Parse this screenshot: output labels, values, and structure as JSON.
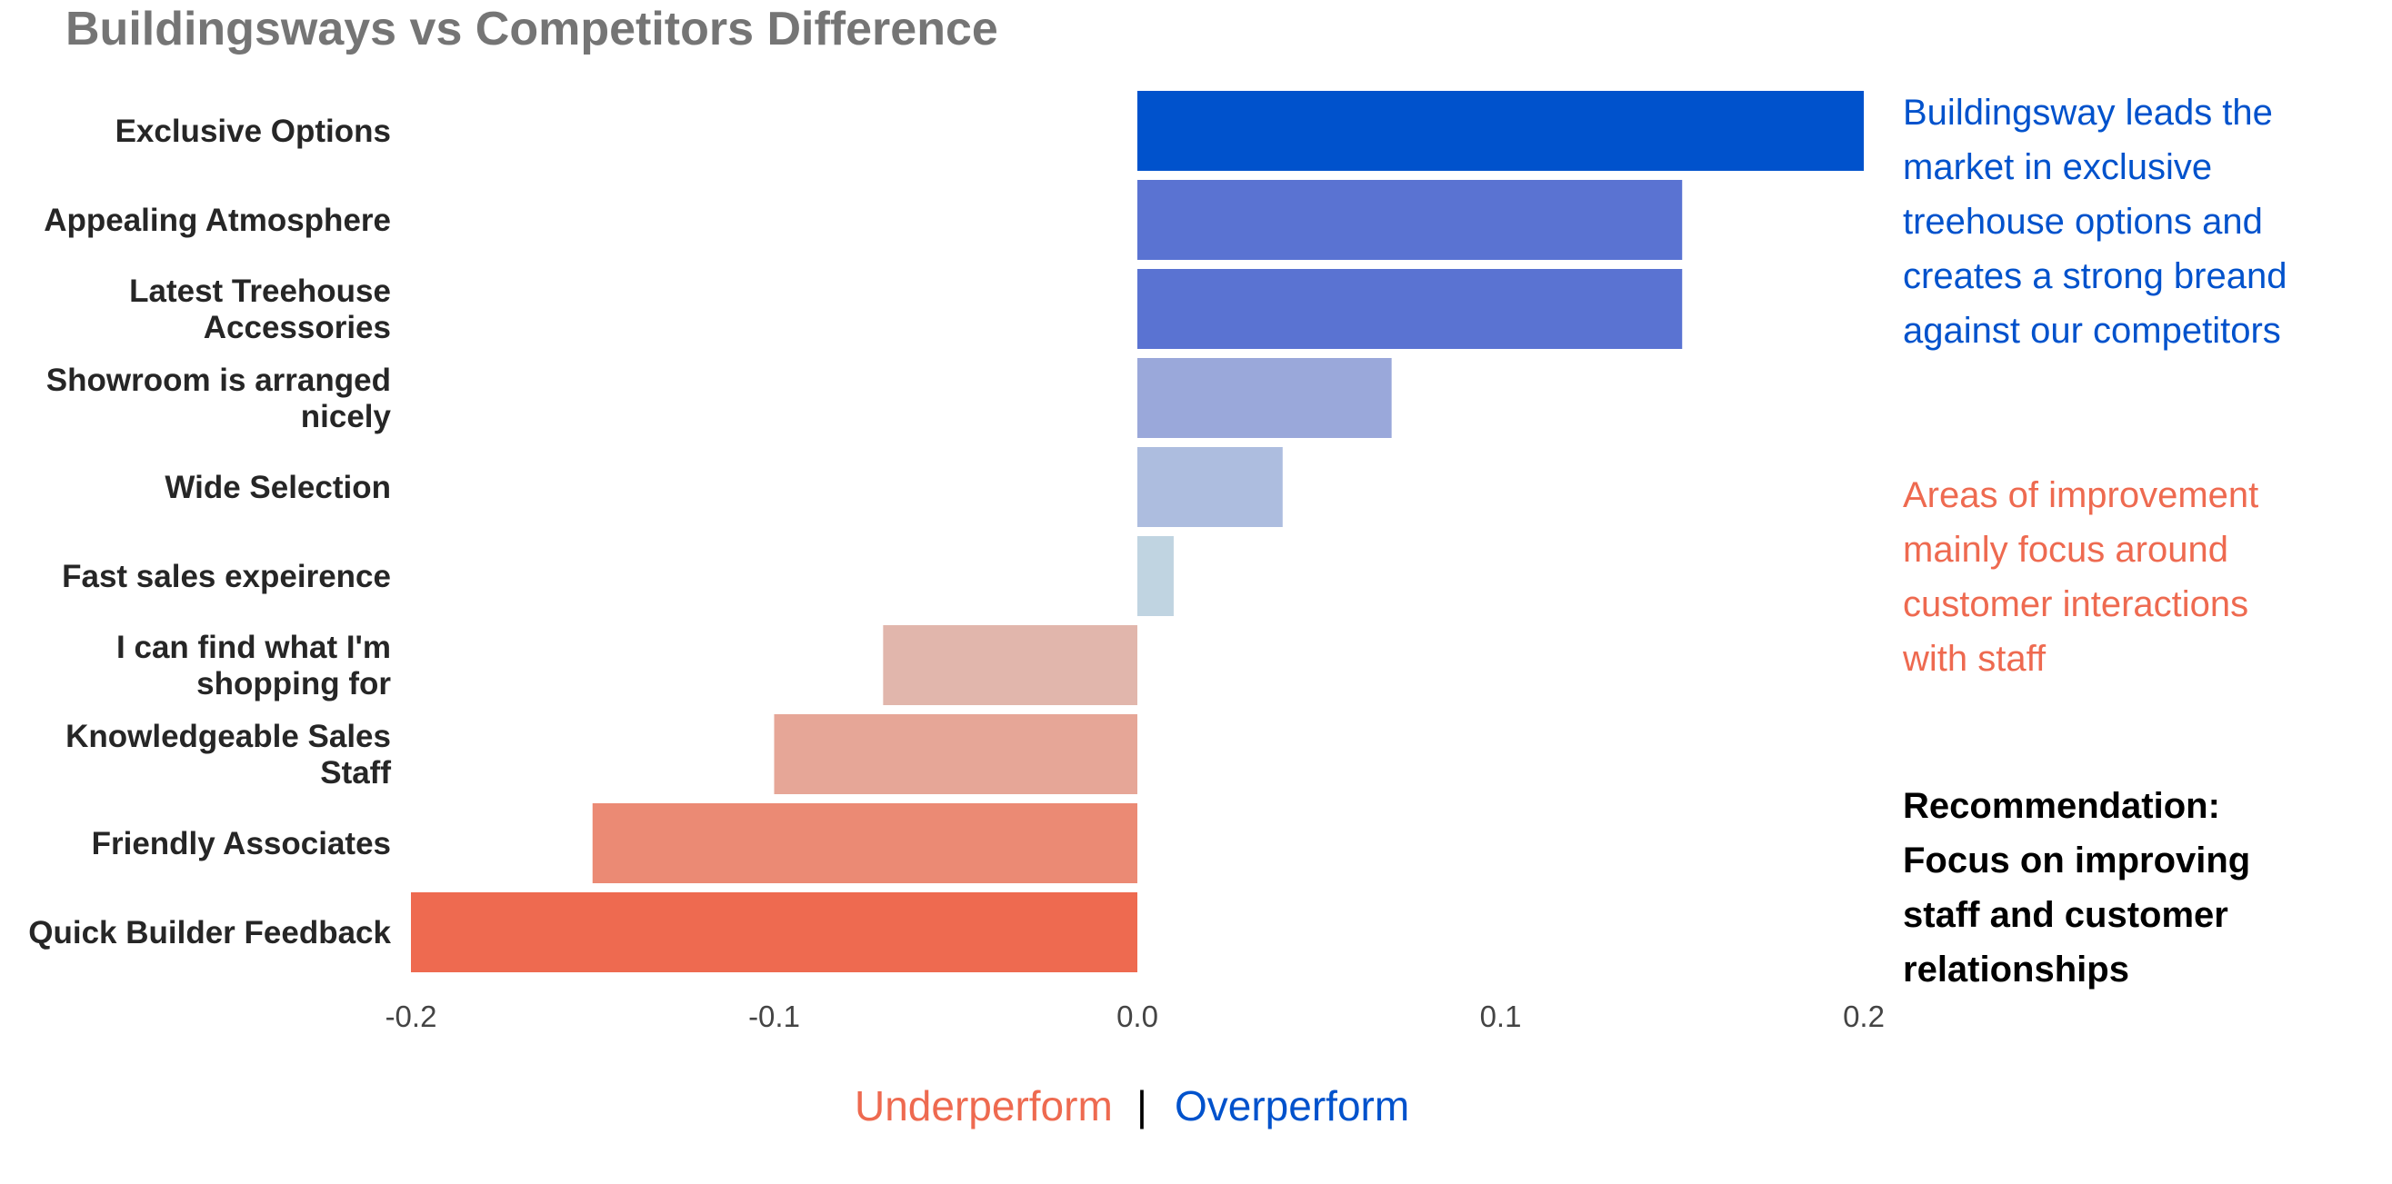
{
  "title": "Buildingsways vs Competitors Difference",
  "colors": {
    "title": "#757575",
    "overperform": "#0052cc",
    "underperform": "#ee6a50",
    "recommendation": "#000000"
  },
  "chart_data": {
    "type": "bar",
    "orientation": "horizontal",
    "title": "Buildingsways vs Competitors Difference",
    "xlabel": "",
    "ylabel": "",
    "xlim": [
      -0.2,
      0.2
    ],
    "x_ticks": [
      "-0.2",
      "-0.1",
      "0.0",
      "0.1",
      "0.2"
    ],
    "grid": false,
    "categories": [
      [
        "Exclusive Options"
      ],
      [
        "Appealing Atmosphere"
      ],
      [
        "Latest Treehouse",
        "Accessories"
      ],
      [
        "Showroom is arranged",
        "nicely"
      ],
      [
        "Wide Selection"
      ],
      [
        "Fast sales expeirence"
      ],
      [
        "I can find what I'm",
        "shopping for"
      ],
      [
        "Knowledgeable Sales",
        "Staff"
      ],
      [
        "Friendly Associates"
      ],
      [
        "Quick Builder Feedback"
      ]
    ],
    "values": [
      0.2,
      0.15,
      0.15,
      0.07,
      0.04,
      0.01,
      -0.07,
      -0.1,
      -0.15,
      -0.2
    ],
    "bar_colors": [
      "#0052cc",
      "#5a73d2",
      "#5a73d2",
      "#9aa8da",
      "#adbddf",
      "#c0d4e1",
      "#e1b6ac",
      "#e6a697",
      "#eb8a74",
      "#ee6a50"
    ]
  },
  "annotations": {
    "lead": {
      "color": "#0052cc",
      "lines": [
        "Buildingsway leads the",
        "market in exclusive",
        "treehouse options and",
        "creates a strong breand",
        "against our competitors"
      ]
    },
    "improve": {
      "color": "#ee6a50",
      "lines": [
        "Areas of improvement",
        "mainly focus around",
        "customer interactions",
        "with staff"
      ]
    },
    "recommend": {
      "lines": [
        "Recommendation:",
        "Focus on improving",
        "staff and customer",
        "relationships"
      ]
    }
  },
  "legend": {
    "underperform": "Underperform",
    "separator": "|",
    "overperform": "Overperform"
  }
}
